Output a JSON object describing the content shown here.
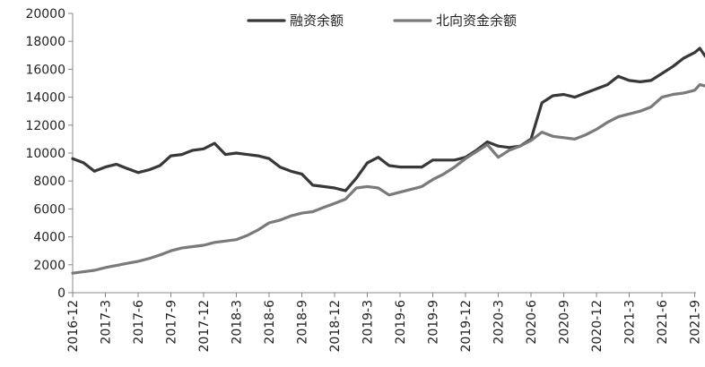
{
  "chart_data": {
    "type": "line",
    "title": "",
    "xlabel": "",
    "ylabel": "",
    "ylim": [
      0,
      20000
    ],
    "y_ticks": [
      0,
      2000,
      4000,
      6000,
      8000,
      10000,
      12000,
      14000,
      16000,
      18000,
      20000
    ],
    "x_ticks": [
      "2016-12",
      "2017-3",
      "2017-6",
      "2017-9",
      "2017-12",
      "2018-3",
      "2018-6",
      "2018-9",
      "2018-12",
      "2019-3",
      "2019-6",
      "2019-9",
      "2019-12",
      "2020-3",
      "2020-6",
      "2020-9",
      "2020-12",
      "2021-3",
      "2021-6",
      "2021-9"
    ],
    "grid": false,
    "legend_position": "top-center",
    "series": [
      {
        "name": "融资余额",
        "color": "#383838",
        "points": [
          [
            "2016-12",
            9600
          ],
          [
            "2017-1",
            9300
          ],
          [
            "2017-2",
            8700
          ],
          [
            "2017-3",
            9000
          ],
          [
            "2017-4",
            9200
          ],
          [
            "2017-5",
            8900
          ],
          [
            "2017-6",
            8600
          ],
          [
            "2017-7",
            8800
          ],
          [
            "2017-8",
            9100
          ],
          [
            "2017-9",
            9800
          ],
          [
            "2017-10",
            9900
          ],
          [
            "2017-11",
            10200
          ],
          [
            "2017-12",
            10300
          ],
          [
            "2018-1",
            10700
          ],
          [
            "2018-2",
            9900
          ],
          [
            "2018-3",
            10000
          ],
          [
            "2018-4",
            9900
          ],
          [
            "2018-5",
            9800
          ],
          [
            "2018-6",
            9600
          ],
          [
            "2018-7",
            9000
          ],
          [
            "2018-8",
            8700
          ],
          [
            "2018-9",
            8500
          ],
          [
            "2018-10",
            7700
          ],
          [
            "2018-11",
            7600
          ],
          [
            "2018-12",
            7500
          ],
          [
            "2019-1",
            7300
          ],
          [
            "2019-2",
            8200
          ],
          [
            "2019-3",
            9300
          ],
          [
            "2019-4",
            9700
          ],
          [
            "2019-5",
            9100
          ],
          [
            "2019-6",
            9000
          ],
          [
            "2019-7",
            9000
          ],
          [
            "2019-8",
            9000
          ],
          [
            "2019-9",
            9500
          ],
          [
            "2019-10",
            9500
          ],
          [
            "2019-11",
            9500
          ],
          [
            "2019-12",
            9700
          ],
          [
            "2020-1",
            10200
          ],
          [
            "2020-2",
            10800
          ],
          [
            "2020-3",
            10500
          ],
          [
            "2020-4",
            10400
          ],
          [
            "2020-5",
            10500
          ],
          [
            "2020-6",
            11000
          ],
          [
            "2020-7",
            13600
          ],
          [
            "2020-8",
            14100
          ],
          [
            "2020-9",
            14200
          ],
          [
            "2020-10",
            14000
          ],
          [
            "2020-11",
            14300
          ],
          [
            "2020-12",
            14600
          ],
          [
            "2021-1",
            14900
          ],
          [
            "2021-2",
            15500
          ],
          [
            "2021-3",
            15200
          ],
          [
            "2021-4",
            15100
          ],
          [
            "2021-5",
            15200
          ],
          [
            "2021-6",
            15700
          ],
          [
            "2021-7",
            16200
          ],
          [
            "2021-8",
            16800
          ],
          [
            "2021-9",
            17200
          ],
          [
            "2021-9-15",
            17500
          ],
          [
            "2021-10",
            16900
          ]
        ]
      },
      {
        "name": "北向资金余额",
        "color": "#7a7a7a",
        "points": [
          [
            "2016-12",
            1400
          ],
          [
            "2017-1",
            1500
          ],
          [
            "2017-2",
            1600
          ],
          [
            "2017-3",
            1800
          ],
          [
            "2017-4",
            1950
          ],
          [
            "2017-5",
            2100
          ],
          [
            "2017-6",
            2250
          ],
          [
            "2017-7",
            2450
          ],
          [
            "2017-8",
            2700
          ],
          [
            "2017-9",
            3000
          ],
          [
            "2017-10",
            3200
          ],
          [
            "2017-11",
            3300
          ],
          [
            "2017-12",
            3400
          ],
          [
            "2018-1",
            3600
          ],
          [
            "2018-2",
            3700
          ],
          [
            "2018-3",
            3800
          ],
          [
            "2018-4",
            4100
          ],
          [
            "2018-5",
            4500
          ],
          [
            "2018-6",
            5000
          ],
          [
            "2018-7",
            5200
          ],
          [
            "2018-8",
            5500
          ],
          [
            "2018-9",
            5700
          ],
          [
            "2018-10",
            5800
          ],
          [
            "2018-11",
            6100
          ],
          [
            "2018-12",
            6400
          ],
          [
            "2019-1",
            6700
          ],
          [
            "2019-2",
            7500
          ],
          [
            "2019-3",
            7600
          ],
          [
            "2019-4",
            7500
          ],
          [
            "2019-5",
            7000
          ],
          [
            "2019-6",
            7200
          ],
          [
            "2019-7",
            7400
          ],
          [
            "2019-8",
            7600
          ],
          [
            "2019-9",
            8100
          ],
          [
            "2019-10",
            8500
          ],
          [
            "2019-11",
            9000
          ],
          [
            "2019-12",
            9600
          ],
          [
            "2020-1",
            10100
          ],
          [
            "2020-2",
            10600
          ],
          [
            "2020-3",
            9700
          ],
          [
            "2020-4",
            10200
          ],
          [
            "2020-5",
            10500
          ],
          [
            "2020-6",
            10900
          ],
          [
            "2020-7",
            11500
          ],
          [
            "2020-8",
            11200
          ],
          [
            "2020-9",
            11100
          ],
          [
            "2020-10",
            11000
          ],
          [
            "2020-11",
            11300
          ],
          [
            "2020-12",
            11700
          ],
          [
            "2021-1",
            12200
          ],
          [
            "2021-2",
            12600
          ],
          [
            "2021-3",
            12800
          ],
          [
            "2021-4",
            13000
          ],
          [
            "2021-5",
            13300
          ],
          [
            "2021-6",
            14000
          ],
          [
            "2021-7",
            14200
          ],
          [
            "2021-8",
            14300
          ],
          [
            "2021-9",
            14500
          ],
          [
            "2021-9-15",
            14900
          ],
          [
            "2021-10",
            14800
          ]
        ]
      }
    ]
  }
}
